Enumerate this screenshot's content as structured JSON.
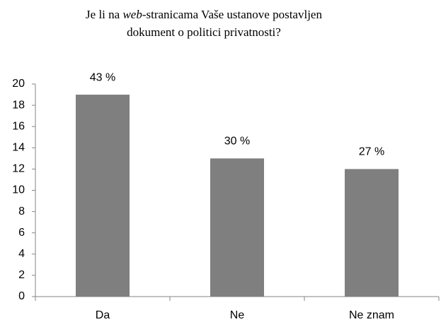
{
  "chart_data": {
    "type": "bar",
    "title": [
      "Je li na ",
      "web",
      "-stranicama Vaše ustanove postavljen",
      "dokument o politici privatnosti?"
    ],
    "categories": [
      "Da",
      "Ne",
      "Ne znam"
    ],
    "values": [
      19,
      13,
      12
    ],
    "value_labels": [
      "43 %",
      "30 %",
      "27 %"
    ],
    "color": "#7f7f7f",
    "ylim": [
      0,
      20
    ],
    "yticks": [
      0,
      2,
      4,
      6,
      8,
      10,
      12,
      14,
      16,
      18,
      20
    ],
    "grid": false
  }
}
